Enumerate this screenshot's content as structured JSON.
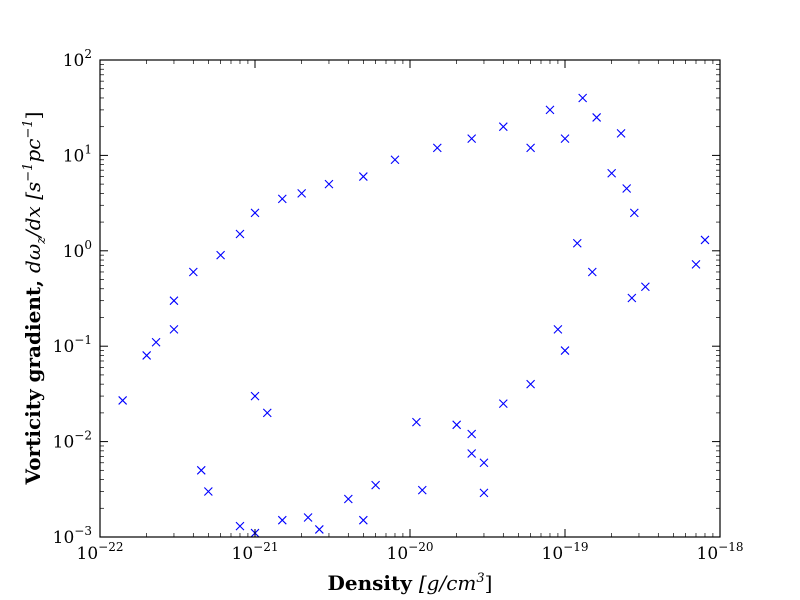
{
  "chart_data": {
    "type": "scatter",
    "marker": "x",
    "xscale": "log",
    "yscale": "log",
    "xlim": [
      1e-22,
      1e-18
    ],
    "ylim": [
      0.001,
      100
    ],
    "xlabel": {
      "prefix": "Density ",
      "unit_text": "[g/cm",
      "unit_exp": "3",
      "unit_close": "]"
    },
    "ylabel": {
      "prefix": "Vorticity gradient, ",
      "math": "dω",
      "math_sub": "z",
      "math_tail": "/dx",
      "unit_open": " [s",
      "unit_exp1": "−1",
      "unit_mid": "pc",
      "unit_exp2": "−1",
      "unit_close": "]"
    },
    "x_ticks": [
      {
        "value": 1e-22,
        "base": "10",
        "exp": "−22"
      },
      {
        "value": 1e-21,
        "base": "10",
        "exp": "−21"
      },
      {
        "value": 1e-20,
        "base": "10",
        "exp": "−20"
      },
      {
        "value": 1e-19,
        "base": "10",
        "exp": "−19"
      },
      {
        "value": 1e-18,
        "base": "10",
        "exp": "−18"
      }
    ],
    "y_ticks": [
      {
        "value": 0.001,
        "base": "10",
        "exp": "−3"
      },
      {
        "value": 0.01,
        "base": "10",
        "exp": "−2"
      },
      {
        "value": 0.1,
        "base": "10",
        "exp": "−1"
      },
      {
        "value": 1,
        "base": "10",
        "exp": "0"
      },
      {
        "value": 10,
        "base": "10",
        "exp": "1"
      },
      {
        "value": 100,
        "base": "10",
        "exp": "2"
      }
    ],
    "marker_color": "#0000ff",
    "series": [
      {
        "points": [
          [
            1.3e-19,
            40.0
          ],
          [
            8e-20,
            30.0
          ],
          [
            7e-19,
            0.72
          ],
          [
            8e-19,
            1.3
          ],
          [
            3.3e-19,
            0.42
          ],
          [
            2.7e-19,
            0.32
          ],
          [
            2.8e-19,
            2.5
          ],
          [
            2.3e-19,
            17.0
          ],
          [
            1.6e-19,
            25.0
          ],
          [
            2e-19,
            6.5
          ],
          [
            3e-20,
            0.0029
          ],
          [
            1.2e-20,
            0.0031
          ],
          [
            3e-20,
            0.006
          ],
          [
            2.5e-20,
            0.0075
          ],
          [
            1.4e-22,
            0.027
          ],
          [
            2e-22,
            0.08
          ],
          [
            2.3e-22,
            0.11
          ],
          [
            3e-22,
            0.15
          ],
          [
            4.5e-22,
            0.005
          ],
          [
            5e-22,
            0.003
          ],
          [
            8e-22,
            0.0013
          ],
          [
            1e-21,
            0.0011
          ],
          [
            1e-21,
            0.03
          ],
          [
            1.2e-21,
            0.02
          ],
          [
            1.5e-21,
            0.0015
          ],
          [
            2.2e-21,
            0.0016
          ],
          [
            2.6e-21,
            0.0012
          ],
          [
            5e-21,
            0.0015
          ],
          [
            4e-21,
            0.0025
          ],
          [
            6e-21,
            0.0035
          ],
          [
            1.1e-20,
            0.016
          ],
          [
            2e-20,
            0.015
          ],
          [
            2.5e-20,
            0.012
          ],
          [
            4e-20,
            0.025
          ],
          [
            6e-20,
            0.04
          ],
          [
            1e-19,
            0.09
          ],
          [
            9e-20,
            0.15
          ],
          [
            1.5e-19,
            0.6
          ],
          [
            1.2e-19,
            1.2
          ],
          [
            2.5e-19,
            4.5
          ],
          [
            3e-22,
            0.3
          ],
          [
            4e-22,
            0.6
          ],
          [
            6e-22,
            0.9
          ],
          [
            8e-22,
            1.5
          ],
          [
            1e-21,
            2.5
          ],
          [
            1.5e-21,
            3.5
          ],
          [
            2e-21,
            4.0
          ],
          [
            3e-21,
            5.0
          ],
          [
            5e-21,
            6.0
          ],
          [
            8e-21,
            9.0
          ],
          [
            1.5e-20,
            12.0
          ],
          [
            2.5e-20,
            15.0
          ],
          [
            4e-20,
            20.0
          ],
          [
            6e-20,
            12.0
          ],
          [
            1e-19,
            15.0
          ]
        ]
      }
    ]
  }
}
